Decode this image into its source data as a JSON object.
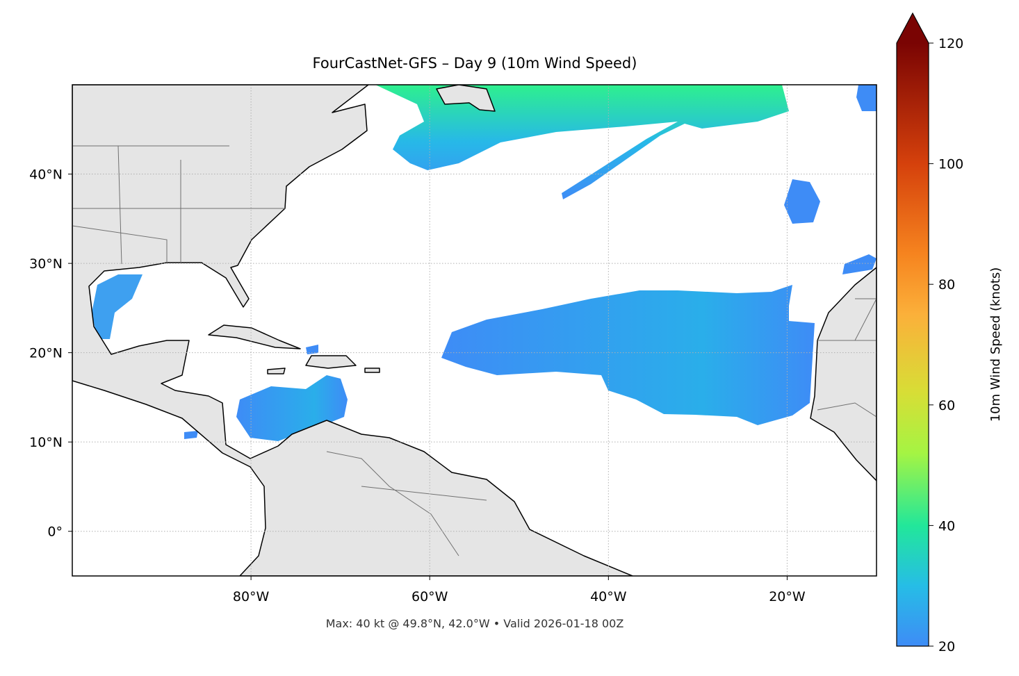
{
  "chart_data": {
    "type": "map",
    "title": "FourCastNet-GFS – Day 9 (10m Wind Speed)",
    "footer": "Max: 40 kt @ 49.8°N, 42.0°W • Valid 2026-01-18 00Z",
    "xlim": [
      -100,
      -10
    ],
    "ylim": [
      -5,
      50
    ],
    "xticks": [
      {
        "value": -80,
        "label": "80°W"
      },
      {
        "value": -60,
        "label": "60°W"
      },
      {
        "value": -40,
        "label": "40°W"
      },
      {
        "value": -20,
        "label": "20°W"
      }
    ],
    "yticks": [
      {
        "value": 0,
        "label": "0°"
      },
      {
        "value": 10,
        "label": "10°N"
      },
      {
        "value": 20,
        "label": "20°N"
      },
      {
        "value": 30,
        "label": "30°N"
      },
      {
        "value": 40,
        "label": "40°N"
      }
    ],
    "grid": true,
    "colorbar": {
      "label": "10m Wind Speed (knots)",
      "clim": [
        20,
        120
      ],
      "ticks": [
        20,
        40,
        60,
        80,
        100,
        120
      ],
      "extend": "max"
    }
  }
}
